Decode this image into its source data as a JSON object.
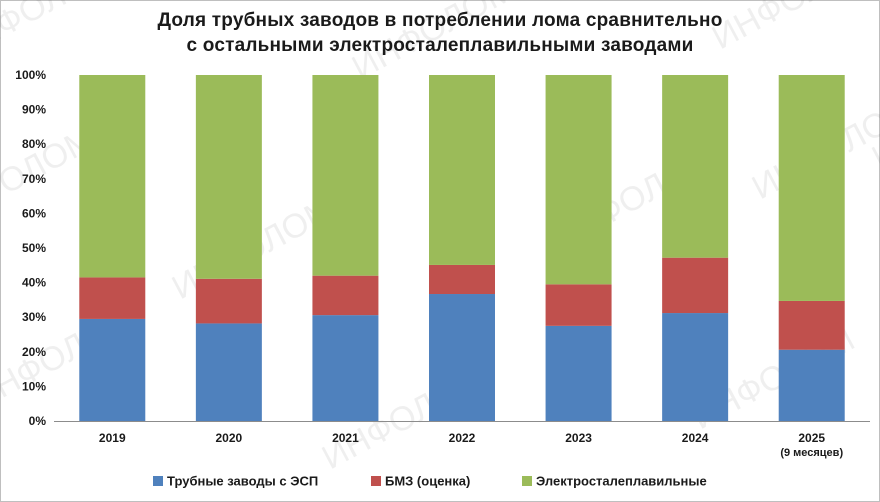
{
  "chart_data": {
    "type": "bar",
    "stacked": true,
    "percent": true,
    "title_lines": [
      "Доля трубных заводов в потреблении лома сравнительно",
      "с остальными электросталеплавильными заводами"
    ],
    "xlabel": "",
    "ylabel": "",
    "ylim": [
      0,
      100
    ],
    "yticks": [
      "0%",
      "10%",
      "20%",
      "30%",
      "40%",
      "50%",
      "60%",
      "70%",
      "80%",
      "90%",
      "100%"
    ],
    "categories": [
      "2019",
      "2020",
      "2021",
      "2022",
      "2023",
      "2024",
      "2025"
    ],
    "category_sublabels": [
      "",
      "",
      "",
      "",
      "",
      "",
      "(9 месяцев)"
    ],
    "series": [
      {
        "name": "Трубные заводы с ЭСП",
        "color": "#4f81bd",
        "values": [
          29.5,
          28.2,
          30.6,
          36.7,
          27.5,
          31.2,
          20.6
        ]
      },
      {
        "name": "БМЗ (оценка)",
        "color": "#c0504d",
        "values": [
          12.0,
          12.9,
          11.4,
          8.4,
          12.0,
          16.0,
          14.1
        ]
      },
      {
        "name": "Электросталеплавильные",
        "color": "#9bbb59",
        "values": [
          58.5,
          58.9,
          58.0,
          54.9,
          60.5,
          52.8,
          65.3
        ]
      }
    ],
    "grid": false,
    "legend_position": "bottom"
  },
  "watermark": "ИНФОЛОМ"
}
